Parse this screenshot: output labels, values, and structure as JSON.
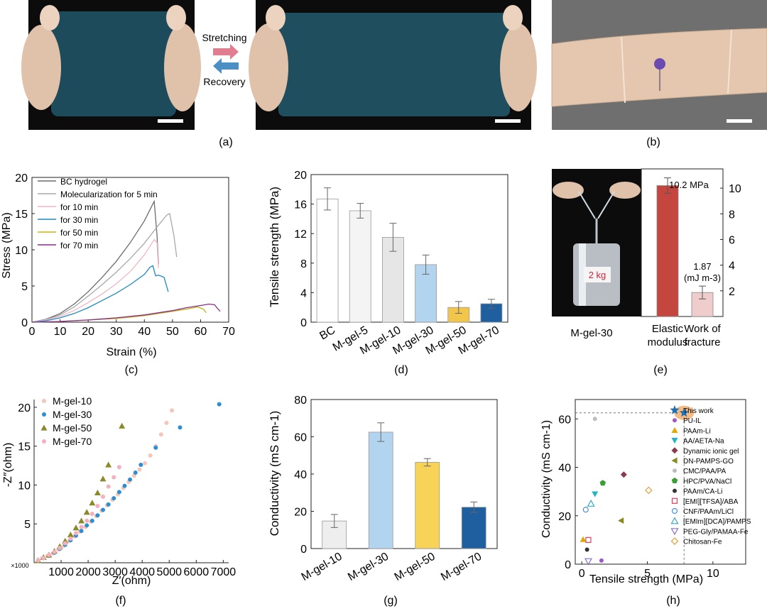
{
  "panel_labels": {
    "a": "(a)",
    "b": "(b)",
    "c": "(c)",
    "d": "(d)",
    "e": "(e)",
    "f": "(f)",
    "g": "(g)",
    "h": "(h)"
  },
  "photo_a": {
    "stretching": "Stretching",
    "recovery": "Recovery"
  },
  "photo_e": {
    "weight_label": "2 kg"
  },
  "colors": {
    "stretch_arrow": "#e07d8f",
    "recover_arrow": "#4c8fc4",
    "skin": "#e3c8ae",
    "gel": "#1b4a58"
  },
  "chart_data": [
    {
      "id": "c",
      "type": "line",
      "xlabel": "Strain (%)",
      "ylabel": "Stress (MPa)",
      "xlim": [
        0,
        70
      ],
      "ylim": [
        0,
        20
      ],
      "xticks": [
        0,
        10,
        20,
        30,
        40,
        50,
        60,
        70
      ],
      "yticks": [
        0,
        5,
        10,
        15,
        20
      ],
      "series": [
        {
          "name": "BC hydrogel",
          "color": "#6b6b6b",
          "x": [
            0,
            5,
            10,
            15,
            20,
            25,
            30,
            35,
            40,
            43.5,
            44.5,
            45
          ],
          "y": [
            0,
            0.4,
            1.2,
            2.5,
            4.2,
            6.2,
            8.4,
            11.0,
            14.0,
            16.7,
            12.0,
            8.0
          ]
        },
        {
          "name": "Molecularization for 5 min",
          "color": "#a8a8a8",
          "x": [
            0,
            5,
            10,
            15,
            20,
            25,
            30,
            35,
            40,
            45,
            48,
            49,
            50.5,
            51.5
          ],
          "y": [
            0,
            0.35,
            1.0,
            2.1,
            3.6,
            5.2,
            6.9,
            8.8,
            10.9,
            13.4,
            14.8,
            15.0,
            12.0,
            9.0
          ]
        },
        {
          "name": "for 10 min",
          "color": "#f2b6c0",
          "x": [
            0,
            5,
            10,
            15,
            20,
            25,
            30,
            35,
            40,
            43.5,
            44.5,
            45
          ],
          "y": [
            0,
            0.3,
            0.8,
            1.6,
            2.7,
            3.9,
            5.3,
            7.0,
            9.3,
            11.4,
            11.0,
            7.5
          ]
        },
        {
          "name": "for 30 min",
          "color": "#1e8ac6",
          "x": [
            0,
            5,
            10,
            15,
            20,
            25,
            30,
            35,
            40,
            42,
            43,
            44,
            45,
            47,
            48.5
          ],
          "y": [
            0,
            0.2,
            0.6,
            1.2,
            2.0,
            3.0,
            4.0,
            5.2,
            6.6,
            7.6,
            7.8,
            6.4,
            6.5,
            6.2,
            4.2
          ]
        },
        {
          "name": "for 50 min",
          "color": "#c5b51a",
          "x": [
            0,
            10,
            20,
            30,
            40,
            50,
            55,
            59,
            61,
            62
          ],
          "y": [
            0,
            0.1,
            0.3,
            0.5,
            0.9,
            1.5,
            1.8,
            2.1,
            1.8,
            1.3
          ]
        },
        {
          "name": "for 70 min",
          "color": "#8a2d8c",
          "x": [
            0,
            10,
            20,
            30,
            40,
            50,
            55,
            60,
            63,
            65,
            66,
            67
          ],
          "y": [
            0,
            0.1,
            0.3,
            0.6,
            1.0,
            1.6,
            2.0,
            2.3,
            2.5,
            2.4,
            1.9,
            1.5
          ]
        }
      ]
    },
    {
      "id": "d",
      "type": "bar",
      "ylabel": "Tensile strength (MPa)",
      "ylim": [
        0,
        20
      ],
      "yticks": [
        0,
        4,
        8,
        12,
        16,
        20
      ],
      "categories": [
        "BC",
        "M-gel-5",
        "M-gel-10",
        "M-gel-30",
        "M-gel-50",
        "M-gel-70"
      ],
      "values": [
        16.7,
        15.1,
        11.5,
        7.8,
        2.0,
        2.5
      ],
      "errors": [
        1.5,
        1.0,
        1.9,
        1.3,
        0.8,
        0.6
      ],
      "colors": [
        "#ffffff",
        "#f4f4f4",
        "#e6e6e6",
        "#b3d4ee",
        "#f2c64a",
        "#1f5fa0"
      ]
    },
    {
      "id": "e",
      "type": "bar",
      "yticks": [
        2,
        4,
        6,
        8,
        10
      ],
      "ylim": [
        0,
        11.5
      ],
      "categories": [
        "Elastic modulus",
        "Work of fracture"
      ],
      "values": [
        10.2,
        1.87
      ],
      "errors": [
        0.6,
        0.5
      ],
      "colors": [
        "#c4463f",
        "#f0cdcd"
      ],
      "annotations": [
        "10.2 MPa",
        "1.87",
        "(mJ m-3)"
      ],
      "category_lines": [
        [
          "Elastic",
          "modulus"
        ],
        [
          "Work of",
          "fracture"
        ]
      ],
      "sample_label": "M-gel-30"
    },
    {
      "id": "f",
      "type": "scatter",
      "xlabel": "Z′(ohm)",
      "ylabel": "-Z″(ohm)",
      "multiplier": "×1000",
      "xlim": [
        0,
        7200
      ],
      "ylim": [
        0,
        21
      ],
      "xticks": [
        1000,
        2000,
        3000,
        4000,
        5000,
        6000,
        7000
      ],
      "yticks": [
        5,
        10,
        15,
        20
      ],
      "series": [
        {
          "name": "M-gel-10",
          "color": "#f6c6b8",
          "marker": "circle",
          "x": [
            150,
            300,
            500,
            700,
            900,
            1100,
            1300,
            1500,
            1700,
            1900,
            2100,
            2300,
            2500,
            2700,
            2900,
            3100,
            3300,
            3500,
            3700,
            3900,
            4100,
            4300,
            4500,
            4700,
            4900,
            5100
          ],
          "y": [
            0.3,
            0.6,
            0.9,
            1.2,
            1.7,
            2.2,
            2.8,
            3.4,
            4.0,
            4.6,
            5.3,
            6.0,
            6.7,
            7.4,
            8.1,
            8.8,
            9.6,
            10.4,
            11.2,
            12.0,
            12.8,
            13.8,
            15.0,
            16.5,
            18.0,
            19.6
          ]
        },
        {
          "name": "M-gel-30",
          "color": "#2b8fd4",
          "marker": "sphere",
          "x": [
            150,
            350,
            550,
            750,
            950,
            1150,
            1350,
            1550,
            1750,
            1950,
            2150,
            2350,
            2550,
            2750,
            2950,
            3150,
            3350,
            3550,
            3750,
            3950,
            4500,
            5400,
            6850
          ],
          "y": [
            0.3,
            0.6,
            0.9,
            1.3,
            1.8,
            2.3,
            2.9,
            3.5,
            4.1,
            4.8,
            5.4,
            6.1,
            6.8,
            7.5,
            8.3,
            9.1,
            9.9,
            10.7,
            11.6,
            12.6,
            14.8,
            17.4,
            20.4
          ]
        },
        {
          "name": "M-gel-50",
          "color": "#8a8a2a",
          "marker": "triangle",
          "x": [
            150,
            350,
            550,
            750,
            950,
            1150,
            1350,
            1550,
            1750,
            1950,
            2150,
            2350,
            2550,
            2750,
            3250
          ],
          "y": [
            0.3,
            0.7,
            1.0,
            1.5,
            2.1,
            2.8,
            3.6,
            4.5,
            5.4,
            6.5,
            7.7,
            9.0,
            10.8,
            12.6,
            17.6
          ]
        },
        {
          "name": "M-gel-70",
          "color": "#f4b0bf",
          "marker": "circle",
          "x": [
            150,
            350,
            550,
            750,
            950,
            1150,
            1350,
            1550,
            1750,
            1950,
            2150,
            2350,
            2550,
            2750,
            2950,
            3150
          ],
          "y": [
            0.3,
            0.6,
            1.0,
            1.4,
            1.9,
            2.5,
            3.1,
            3.8,
            4.6,
            5.4,
            6.3,
            7.3,
            8.5,
            9.8,
            11.0,
            12.3
          ]
        }
      ]
    },
    {
      "id": "g",
      "type": "bar",
      "ylabel": "Conductivity (mS cm-1)",
      "ylim": [
        0,
        80
      ],
      "yticks": [
        0,
        20,
        40,
        60,
        80
      ],
      "categories": [
        "M-gel-10",
        "M-gel-30",
        "M-gel-50",
        "M-gel-70"
      ],
      "values": [
        14.8,
        62.5,
        46.3,
        22.2
      ],
      "errors": [
        3.5,
        5.0,
        2.0,
        2.8
      ],
      "colors": [
        "#eeeeee",
        "#b3d4ee",
        "#f7d458",
        "#1f5fa0"
      ]
    },
    {
      "id": "h",
      "type": "scatter",
      "xlabel": "Tensile strength (MPa)",
      "ylabel": "Conductivity (mS cm-1)",
      "xlim": [
        -0.5,
        12.5
      ],
      "ylim": [
        0,
        68
      ],
      "xticks": [
        0,
        5,
        10
      ],
      "yticks": [
        0,
        20,
        40,
        60
      ],
      "highlight": {
        "x": 7.8,
        "y": 62.5
      },
      "series": [
        {
          "name": "This work",
          "color": "#1f6fb5",
          "marker": "star",
          "x": [
            7.8
          ],
          "y": [
            62.5
          ]
        },
        {
          "name": "PU-IL",
          "color": "#a056c8",
          "marker": "circle",
          "x": [
            1.5
          ],
          "y": [
            1.5
          ]
        },
        {
          "name": "PAAm-Li",
          "color": "#e0a800",
          "marker": "triangle-up",
          "x": [
            0.1
          ],
          "y": [
            10.2
          ]
        },
        {
          "name": "AA/AETA-Na",
          "color": "#1fb5c4",
          "marker": "triangle-down",
          "x": [
            1.0
          ],
          "y": [
            29
          ]
        },
        {
          "name": "Dynamic ionic gel",
          "color": "#8b3a4a",
          "marker": "diamond",
          "x": [
            3.2
          ],
          "y": [
            37
          ]
        },
        {
          "name": "DN-PAMPS-GO",
          "color": "#8a8a20",
          "marker": "triangle-left",
          "x": [
            3.0
          ],
          "y": [
            18
          ]
        },
        {
          "name": "CMC/PAA/PA",
          "color": "#bdbdbd",
          "marker": "circle",
          "x": [
            1.0
          ],
          "y": [
            60
          ]
        },
        {
          "name": "HPC/PVA/NaCl",
          "color": "#3aa035",
          "marker": "pentagon",
          "x": [
            1.6
          ],
          "y": [
            33.5
          ]
        },
        {
          "name": "PAAm/CA-Li",
          "color": "#333333",
          "marker": "circle",
          "x": [
            0.4
          ],
          "y": [
            6
          ]
        },
        {
          "name": "[EMI][TFSA]/ABA",
          "color": "#e04060",
          "marker": "square-open",
          "x": [
            0.5
          ],
          "y": [
            10
          ]
        },
        {
          "name": "CNF/PAAm/LiCl",
          "color": "#4b8fd8",
          "marker": "circle-open",
          "x": [
            0.3
          ],
          "y": [
            22.5
          ]
        },
        {
          "name": "[EMIm][DCA]/PAMPS",
          "color": "#3aa9c0",
          "marker": "triangle-up-open",
          "x": [
            0.7
          ],
          "y": [
            25
          ]
        },
        {
          "name": "PEG-Gly/PAMAA-Fe",
          "color": "#8a70c8",
          "marker": "triangle-down-open",
          "x": [
            0.5
          ],
          "y": [
            1.2
          ]
        },
        {
          "name": "Chitosan-Fe",
          "color": "#e0a040",
          "marker": "diamond-open",
          "x": [
            5.1
          ],
          "y": [
            30.5
          ]
        }
      ]
    }
  ]
}
